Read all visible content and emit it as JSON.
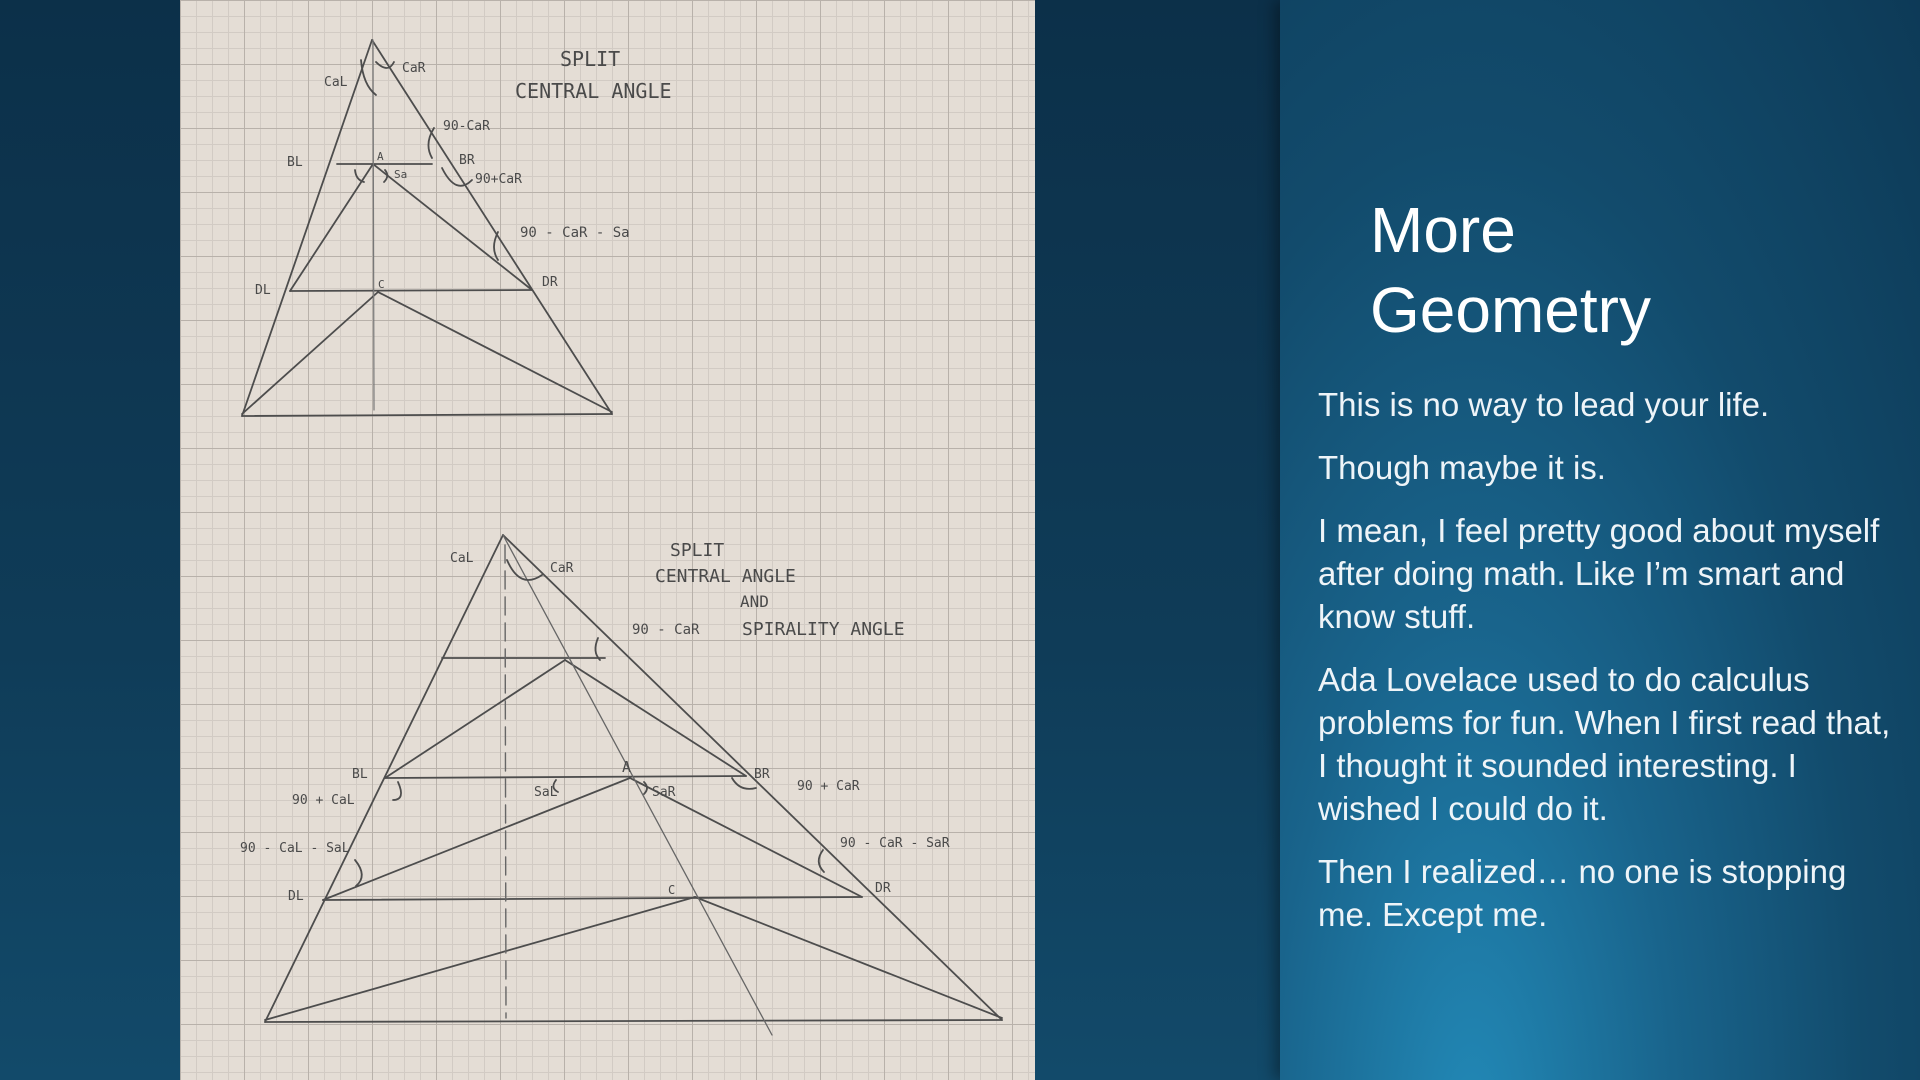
{
  "slide": {
    "title_line1": "More",
    "title_line2": "Geometry",
    "paragraphs": [
      "This is no way to lead your life.",
      "Though maybe it is.",
      "I mean, I feel pretty good about myself after doing math. Like I’m smart and know stuff.",
      "Ada Lovelace used to do calculus problems for fun. When I first read that, I thought it sounded interesting. I wished I could do it.",
      "Then I realized… no one is stopping me. Except me."
    ]
  },
  "drawing": {
    "top": {
      "heading_line1": "SPLIT",
      "heading_line2": "CENTRAL ANGLE",
      "labels": {
        "cal": "CaL",
        "car": "CaR",
        "bl": "BL",
        "a": "A",
        "br": "BR",
        "sa": "Sa",
        "dl": "DL",
        "c": "C",
        "dr": "DR",
        "ang1": "90-CaR",
        "ang2": "90+CaR",
        "ang3": "90 - CaR - Sa"
      }
    },
    "bottom": {
      "heading_line1": "SPLIT",
      "heading_line2": "CENTRAL ANGLE",
      "heading_line3": "AND",
      "heading_line4": "SPIRALITY ANGLE",
      "labels": {
        "cal": "CaL",
        "car": "CaR",
        "bl": "BL",
        "a": "A",
        "br": "BR",
        "sal": "SaL",
        "sar": "SaR",
        "dl": "DL",
        "c": "C",
        "dr": "DR",
        "ang1": "90 - CaR",
        "ang2": "90 + CaL",
        "ang3": "90 + CaR",
        "ang4": "90 - CaL - SaL",
        "ang5": "90 - CaR - SaR"
      }
    }
  },
  "colors": {
    "background": "#0f3f5d",
    "panel": "#15587c",
    "paper": "#e4ddd5",
    "pencil": "#4a4a4a",
    "text": "#ffffff"
  }
}
